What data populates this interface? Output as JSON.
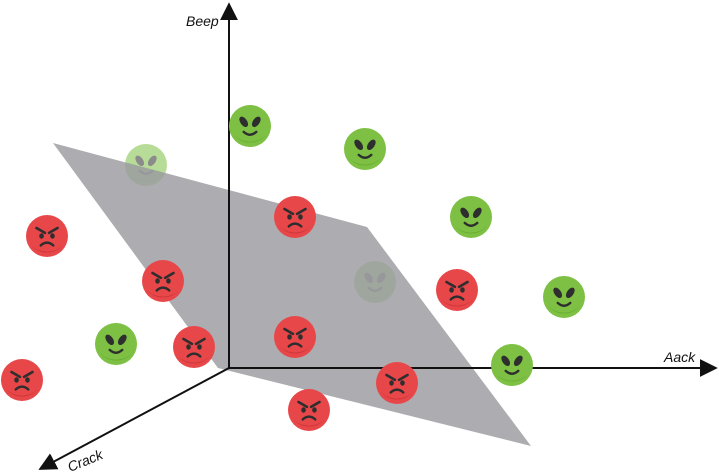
{
  "axes": {
    "x_label": "Aack",
    "y_label": "Beep",
    "z_label": "Crack"
  },
  "colors": {
    "plane": "#9a9aa0",
    "axis": "#111111",
    "happy_face": "#7dc043",
    "happy_face_shade": "#6aae33",
    "angry_face": "#e8474a",
    "angry_face_shade": "#cf3639",
    "feature": "#2e2e2e"
  },
  "legend_icons": {
    "happy": "happy-alien-face-icon",
    "angry": "angry-face-icon"
  }
}
